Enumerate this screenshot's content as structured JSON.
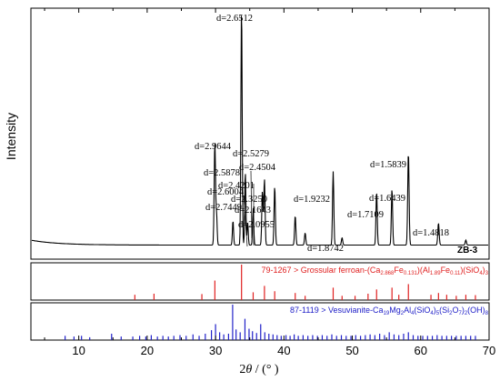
{
  "chart_data": {
    "type": "line",
    "ylabel": "Intensity",
    "xlabel_theta": "θ",
    "xlabel_unit": " / (° )",
    "xlim": [
      3,
      70
    ],
    "xticks": [
      10,
      20,
      30,
      40,
      50,
      60,
      70
    ],
    "sample_label": "ZB-3",
    "pattern": {
      "baseline": 0.05,
      "peaks": [
        {
          "x": 29.9,
          "h": 0.42,
          "w": 0.14
        },
        {
          "x": 30.15,
          "h": 0.12,
          "w": 0.12
        },
        {
          "x": 32.55,
          "h": 0.1,
          "w": 0.12
        },
        {
          "x": 33.8,
          "h": 0.97,
          "w": 0.13
        },
        {
          "x": 34.35,
          "h": 0.3,
          "w": 0.12
        },
        {
          "x": 34.7,
          "h": 0.09,
          "w": 0.12
        },
        {
          "x": 35.5,
          "h": 0.15,
          "w": 0.12
        },
        {
          "x": 36.85,
          "h": 0.22,
          "w": 0.13
        },
        {
          "x": 37.15,
          "h": 0.27,
          "w": 0.13
        },
        {
          "x": 38.65,
          "h": 0.24,
          "w": 0.13
        },
        {
          "x": 41.65,
          "h": 0.12,
          "w": 0.13
        },
        {
          "x": 43.1,
          "h": 0.05,
          "w": 0.13
        },
        {
          "x": 47.2,
          "h": 0.3,
          "w": 0.13
        },
        {
          "x": 48.5,
          "h": 0.03,
          "w": 0.13
        },
        {
          "x": 53.55,
          "h": 0.22,
          "w": 0.13
        },
        {
          "x": 55.8,
          "h": 0.23,
          "w": 0.13
        },
        {
          "x": 58.2,
          "h": 0.38,
          "w": 0.14
        },
        {
          "x": 62.6,
          "h": 0.09,
          "w": 0.14
        },
        {
          "x": 66.6,
          "h": 0.02,
          "w": 0.13
        }
      ]
    },
    "d_labels": [
      {
        "text": "d=2.6512",
        "x": 33.8
      },
      {
        "text": "d=2.9644",
        "x": 29.9
      },
      {
        "text": "d=2.5279",
        "x": 34.35
      },
      {
        "text": "d=2.5878",
        "x": 34.7
      },
      {
        "text": "d=2.4504",
        "x": 37.15
      },
      {
        "text": "d=2.4201",
        "x": 36.85
      },
      {
        "text": "d=2.6004",
        "x": 32.55
      },
      {
        "text": "d=2.3250",
        "x": 38.65
      },
      {
        "text": "d=2.7449",
        "x": 32.0
      },
      {
        "text": "d=2.1643",
        "x": 41.65
      },
      {
        "text": "d=2.0955",
        "x": 43.1
      },
      {
        "text": "d=1.9232",
        "x": 47.2
      },
      {
        "text": "d=1.8742",
        "x": 48.5
      },
      {
        "text": "d=1.7109",
        "x": 53.55
      },
      {
        "text": "d=1.6439",
        "x": 55.8
      },
      {
        "text": "d=1.5839",
        "x": 58.2
      },
      {
        "text": "d=1.4818",
        "x": 62.6
      }
    ],
    "references": [
      {
        "name_main": "79-1267 > Grossular ferroan-(Ca",
        "name_sub1": "2.868",
        "name_mid1": "Fe",
        "name_sub2": "0.131",
        "name_mid2": ")(Al",
        "name_sub3": "1.89",
        "name_mid3": "Fe",
        "name_sub4": "0.11",
        "name_mid4": ")(SiO",
        "name_sub5": "4",
        "name_end": ")",
        "name_sub6": "3",
        "color": "#e02020",
        "sticks": [
          {
            "x": 18.2,
            "h": 0.15
          },
          {
            "x": 21.0,
            "h": 0.18
          },
          {
            "x": 28.0,
            "h": 0.17
          },
          {
            "x": 29.9,
            "h": 0.55
          },
          {
            "x": 33.8,
            "h": 1.0
          },
          {
            "x": 35.5,
            "h": 0.22
          },
          {
            "x": 37.15,
            "h": 0.4
          },
          {
            "x": 38.65,
            "h": 0.25
          },
          {
            "x": 41.65,
            "h": 0.2
          },
          {
            "x": 43.1,
            "h": 0.12
          },
          {
            "x": 47.2,
            "h": 0.35
          },
          {
            "x": 48.5,
            "h": 0.12
          },
          {
            "x": 50.4,
            "h": 0.12
          },
          {
            "x": 52.3,
            "h": 0.18
          },
          {
            "x": 53.55,
            "h": 0.3
          },
          {
            "x": 55.8,
            "h": 0.35
          },
          {
            "x": 56.8,
            "h": 0.15
          },
          {
            "x": 58.2,
            "h": 0.45
          },
          {
            "x": 61.5,
            "h": 0.15
          },
          {
            "x": 62.6,
            "h": 0.2
          },
          {
            "x": 63.8,
            "h": 0.15
          },
          {
            "x": 65.2,
            "h": 0.12
          },
          {
            "x": 66.6,
            "h": 0.15
          },
          {
            "x": 68.0,
            "h": 0.14
          }
        ]
      },
      {
        "name_main": "87-1119 > Vesuvianite-Ca",
        "name_sub1": "19",
        "name_mid1": "Mg",
        "name_sub2": "2",
        "name_mid2": "Al",
        "name_sub3": "4",
        "name_mid3": "(SiO",
        "name_sub4": "4",
        "name_mid4": ")",
        "name_sub5": "5",
        "name_end": "(Si",
        "name_sub6": "2",
        "name_tail": "O",
        "name_sub7": "7",
        "name_tail2": ")",
        "name_sub8": "2",
        "name_tail3": "(OH)",
        "name_sub9": "8",
        "color": "#2020c8",
        "sticks": [
          {
            "x": 8.0,
            "h": 0.12
          },
          {
            "x": 9.3,
            "h": 0.1
          },
          {
            "x": 10.4,
            "h": 0.12
          },
          {
            "x": 11.6,
            "h": 0.08
          },
          {
            "x": 14.8,
            "h": 0.18
          },
          {
            "x": 16.2,
            "h": 0.1
          },
          {
            "x": 17.9,
            "h": 0.1
          },
          {
            "x": 18.9,
            "h": 0.12
          },
          {
            "x": 19.8,
            "h": 0.1
          },
          {
            "x": 20.6,
            "h": 0.14
          },
          {
            "x": 21.5,
            "h": 0.1
          },
          {
            "x": 22.3,
            "h": 0.12
          },
          {
            "x": 23.1,
            "h": 0.1
          },
          {
            "x": 23.9,
            "h": 0.12
          },
          {
            "x": 24.8,
            "h": 0.14
          },
          {
            "x": 25.7,
            "h": 0.12
          },
          {
            "x": 26.7,
            "h": 0.16
          },
          {
            "x": 27.6,
            "h": 0.12
          },
          {
            "x": 28.5,
            "h": 0.18
          },
          {
            "x": 29.4,
            "h": 0.28
          },
          {
            "x": 30.0,
            "h": 0.45
          },
          {
            "x": 30.6,
            "h": 0.22
          },
          {
            "x": 31.2,
            "h": 0.16
          },
          {
            "x": 31.9,
            "h": 0.18
          },
          {
            "x": 32.5,
            "h": 1.0
          },
          {
            "x": 33.0,
            "h": 0.3
          },
          {
            "x": 33.6,
            "h": 0.22
          },
          {
            "x": 34.3,
            "h": 0.6
          },
          {
            "x": 34.9,
            "h": 0.32
          },
          {
            "x": 35.4,
            "h": 0.25
          },
          {
            "x": 36.0,
            "h": 0.2
          },
          {
            "x": 36.6,
            "h": 0.45
          },
          {
            "x": 37.2,
            "h": 0.22
          },
          {
            "x": 37.8,
            "h": 0.18
          },
          {
            "x": 38.4,
            "h": 0.16
          },
          {
            "x": 39.0,
            "h": 0.14
          },
          {
            "x": 39.6,
            "h": 0.12
          },
          {
            "x": 40.3,
            "h": 0.14
          },
          {
            "x": 40.9,
            "h": 0.12
          },
          {
            "x": 41.5,
            "h": 0.16
          },
          {
            "x": 42.1,
            "h": 0.12
          },
          {
            "x": 42.8,
            "h": 0.14
          },
          {
            "x": 43.5,
            "h": 0.12
          },
          {
            "x": 44.2,
            "h": 0.14
          },
          {
            "x": 44.9,
            "h": 0.12
          },
          {
            "x": 45.6,
            "h": 0.14
          },
          {
            "x": 46.3,
            "h": 0.12
          },
          {
            "x": 47.0,
            "h": 0.16
          },
          {
            "x": 47.7,
            "h": 0.12
          },
          {
            "x": 48.4,
            "h": 0.14
          },
          {
            "x": 49.1,
            "h": 0.12
          },
          {
            "x": 49.8,
            "h": 0.12
          },
          {
            "x": 50.5,
            "h": 0.14
          },
          {
            "x": 51.2,
            "h": 0.12
          },
          {
            "x": 51.9,
            "h": 0.14
          },
          {
            "x": 52.6,
            "h": 0.16
          },
          {
            "x": 53.3,
            "h": 0.14
          },
          {
            "x": 54.0,
            "h": 0.18
          },
          {
            "x": 54.7,
            "h": 0.14
          },
          {
            "x": 55.4,
            "h": 0.22
          },
          {
            "x": 56.1,
            "h": 0.16
          },
          {
            "x": 56.8,
            "h": 0.14
          },
          {
            "x": 57.5,
            "h": 0.18
          },
          {
            "x": 58.2,
            "h": 0.22
          },
          {
            "x": 58.9,
            "h": 0.14
          },
          {
            "x": 59.6,
            "h": 0.12
          },
          {
            "x": 60.3,
            "h": 0.12
          },
          {
            "x": 61.0,
            "h": 0.12
          },
          {
            "x": 61.7,
            "h": 0.12
          },
          {
            "x": 62.4,
            "h": 0.14
          },
          {
            "x": 63.1,
            "h": 0.12
          },
          {
            "x": 63.8,
            "h": 0.12
          },
          {
            "x": 64.5,
            "h": 0.12
          },
          {
            "x": 65.2,
            "h": 0.12
          },
          {
            "x": 65.9,
            "h": 0.12
          },
          {
            "x": 66.6,
            "h": 0.12
          },
          {
            "x": 67.3,
            "h": 0.12
          },
          {
            "x": 68.0,
            "h": 0.12
          }
        ]
      }
    ]
  }
}
